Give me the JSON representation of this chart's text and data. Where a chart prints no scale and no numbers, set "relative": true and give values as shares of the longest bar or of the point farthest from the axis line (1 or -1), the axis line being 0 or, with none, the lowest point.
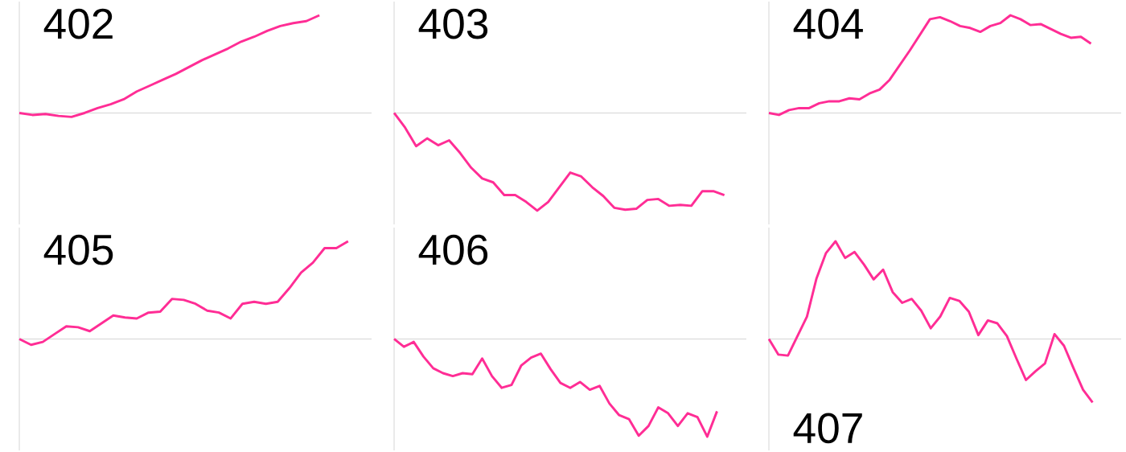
{
  "chart_data": [
    {
      "type": "line",
      "title": "402",
      "relative": true,
      "color": "#ff2d95",
      "categories": [
        null,
        null,
        null,
        null,
        null,
        null,
        null,
        null,
        null,
        null,
        null,
        null,
        null,
        null,
        null,
        null,
        null,
        null,
        null,
        null,
        null,
        null,
        null,
        null,
        null,
        null,
        null,
        null
      ],
      "values": [
        0,
        -0.02,
        -0.01,
        -0.03,
        -0.04,
        0,
        0.05,
        0.09,
        0.14,
        0.22,
        0.28,
        0.34,
        0.4,
        0.47,
        0.54,
        0.6,
        0.66,
        0.73,
        0.78,
        0.84,
        0.89,
        0.92,
        0.94,
        1.0,
        null,
        null,
        null,
        null
      ]
    },
    {
      "type": "line",
      "title": "403",
      "relative": true,
      "color": "#ff2d95",
      "categories": [
        null,
        null,
        null,
        null,
        null,
        null,
        null,
        null,
        null,
        null,
        null,
        null,
        null,
        null,
        null,
        null,
        null,
        null,
        null,
        null,
        null,
        null,
        null,
        null,
        null,
        null,
        null,
        null,
        null,
        null,
        null,
        null,
        null
      ],
      "values": [
        0,
        -0.15,
        -0.34,
        -0.26,
        -0.33,
        -0.28,
        -0.41,
        -0.56,
        -0.67,
        -0.71,
        -0.84,
        -0.84,
        -0.91,
        -1,
        -0.91,
        -0.76,
        -0.61,
        -0.65,
        -0.76,
        -0.85,
        -0.97,
        -0.99,
        -0.98,
        -0.89,
        -0.88,
        -0.95,
        -0.94,
        -0.95,
        -0.8,
        -0.8,
        -0.84,
        null,
        null
      ]
    },
    {
      "type": "line",
      "title": "404",
      "relative": true,
      "color": "#ff2d95",
      "categories": [
        null,
        null,
        null,
        null,
        null,
        null,
        null,
        null,
        null,
        null,
        null,
        null,
        null,
        null,
        null,
        null,
        null,
        null,
        null,
        null,
        null,
        null,
        null,
        null,
        null,
        null,
        null,
        null,
        null,
        null,
        null,
        null,
        null,
        null,
        null,
        null
      ],
      "values": [
        0,
        -0.02,
        0.03,
        0.05,
        0.05,
        0.1,
        0.12,
        0.12,
        0.15,
        0.14,
        0.2,
        0.24,
        0.34,
        0.49,
        0.64,
        0.8,
        0.96,
        0.98,
        0.94,
        0.89,
        0.87,
        0.83,
        0.89,
        0.92,
        1,
        0.96,
        0.9,
        0.91,
        0.86,
        0.81,
        0.77,
        0.78,
        0.71,
        null,
        null,
        null
      ]
    },
    {
      "type": "line",
      "title": "405",
      "relative": true,
      "color": "#ff2d95",
      "categories": [
        null,
        null,
        null,
        null,
        null,
        null,
        null,
        null,
        null,
        null,
        null,
        null,
        null,
        null,
        null,
        null,
        null,
        null,
        null,
        null,
        null,
        null,
        null,
        null,
        null,
        null,
        null,
        null,
        null,
        null,
        null
      ],
      "values": [
        0,
        -0.06,
        -0.03,
        0.05,
        0.13,
        0.12,
        0.08,
        0.16,
        0.24,
        0.22,
        0.21,
        0.27,
        0.28,
        0.41,
        0.4,
        0.36,
        0.29,
        0.27,
        0.21,
        0.36,
        0.38,
        0.36,
        0.38,
        0.52,
        0.68,
        0.78,
        0.93,
        0.93,
        1,
        null,
        null
      ]
    },
    {
      "type": "line",
      "title": "406",
      "relative": true,
      "color": "#ff2d95",
      "categories": [
        null,
        null,
        null,
        null,
        null,
        null,
        null,
        null,
        null,
        null,
        null,
        null,
        null,
        null,
        null,
        null,
        null,
        null,
        null,
        null,
        null,
        null,
        null,
        null,
        null,
        null,
        null,
        null,
        null,
        null,
        null,
        null,
        null,
        null,
        null,
        null,
        null
      ],
      "values": [
        0,
        -0.08,
        -0.03,
        -0.18,
        -0.3,
        -0.35,
        -0.38,
        -0.35,
        -0.36,
        -0.2,
        -0.38,
        -0.5,
        -0.47,
        -0.27,
        -0.19,
        -0.15,
        -0.31,
        -0.45,
        -0.5,
        -0.44,
        -0.52,
        -0.48,
        -0.66,
        -0.78,
        -0.82,
        -0.99,
        -0.89,
        -0.7,
        -0.76,
        -0.89,
        -0.76,
        -0.8,
        -1,
        -0.74,
        null,
        null,
        null
      ]
    },
    {
      "type": "line",
      "title": "407",
      "relative": true,
      "color": "#ff2d95",
      "categories": [
        null,
        null,
        null,
        null,
        null,
        null,
        null,
        null,
        null,
        null,
        null,
        null,
        null,
        null,
        null,
        null,
        null,
        null,
        null,
        null,
        null,
        null,
        null,
        null,
        null,
        null,
        null,
        null,
        null,
        null,
        null,
        null,
        null,
        null,
        null,
        null,
        null,
        null
      ],
      "values": [
        0,
        -0.16,
        -0.17,
        0.03,
        0.23,
        0.62,
        0.88,
        1,
        0.83,
        0.89,
        0.76,
        0.61,
        0.71,
        0.48,
        0.37,
        0.41,
        0.29,
        0.11,
        0.23,
        0.42,
        0.39,
        0.28,
        0.04,
        0.19,
        0.16,
        0.03,
        -0.2,
        -0.42,
        -0.33,
        -0.25,
        0.05,
        -0.07,
        -0.3,
        -0.52,
        -0.65,
        null,
        null,
        null
      ]
    }
  ]
}
